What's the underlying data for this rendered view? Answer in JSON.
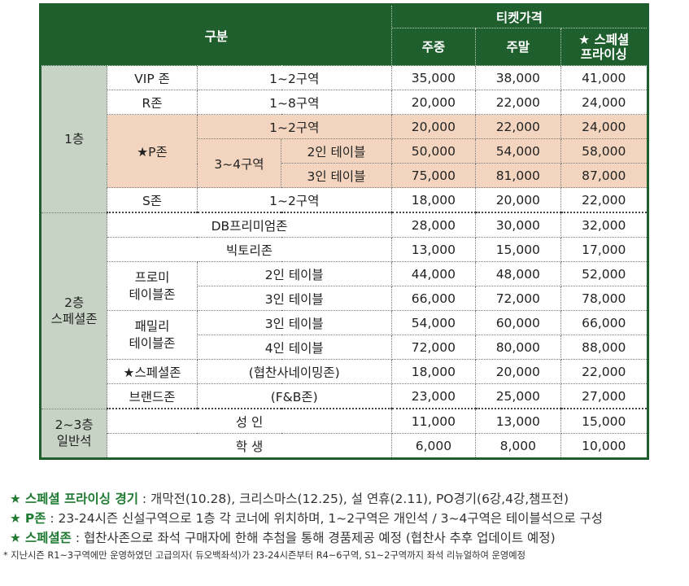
{
  "header": {
    "category": "구분",
    "ticket_price": "티켓가격",
    "weekday": "주중",
    "weekend": "주말",
    "special_line1": "★ 스페셜",
    "special_line2": "프라이싱"
  },
  "floors": {
    "f1": "1층",
    "f2_line1": "2층",
    "f2_line2": "스페셜존",
    "f23_line1": "2~3층",
    "f23_line2": "일반석"
  },
  "rows": {
    "vip": {
      "zone": "VIP 존",
      "section": "1~2구역",
      "weekday": "35,000",
      "weekend": "38,000",
      "special": "41,000"
    },
    "r": {
      "zone": "R존",
      "section": "1~8구역",
      "weekday": "20,000",
      "weekend": "22,000",
      "special": "24,000"
    },
    "p12": {
      "zone": "★P존",
      "section": "1~2구역",
      "weekday": "20,000",
      "weekend": "22,000",
      "special": "24,000"
    },
    "p34_2": {
      "section": "3~4구역",
      "table": "2인 테이블",
      "weekday": "50,000",
      "weekend": "54,000",
      "special": "58,000"
    },
    "p34_3": {
      "table": "3인 테이블",
      "weekday": "75,000",
      "weekend": "81,000",
      "special": "87,000"
    },
    "s": {
      "zone": "S존",
      "section": "1~2구역",
      "weekday": "18,000",
      "weekend": "20,000",
      "special": "22,000"
    },
    "db": {
      "zone": "DB프리미엄존",
      "weekday": "28,000",
      "weekend": "30,000",
      "special": "32,000"
    },
    "victory": {
      "zone": "빅토리존",
      "weekday": "13,000",
      "weekend": "15,000",
      "special": "17,000"
    },
    "promi2": {
      "zone_line1": "프로미",
      "zone_line2": "테이블존",
      "table": "2인 테이블",
      "weekday": "44,000",
      "weekend": "48,000",
      "special": "52,000"
    },
    "promi3": {
      "table": "3인 테이블",
      "weekday": "66,000",
      "weekend": "72,000",
      "special": "78,000"
    },
    "family3": {
      "zone_line1": "패밀리",
      "zone_line2": "테이블존",
      "table": "3인 테이블",
      "weekday": "54,000",
      "weekend": "60,000",
      "special": "66,000"
    },
    "family4": {
      "table": "4인 테이블",
      "weekday": "72,000",
      "weekend": "80,000",
      "special": "88,000"
    },
    "special": {
      "zone": "★스페셜존",
      "note": "(협찬사네이밍존)",
      "weekday": "18,000",
      "weekend": "20,000",
      "special": "22,000"
    },
    "brand": {
      "zone": "브랜드존",
      "note": "(F&B존)",
      "weekday": "23,000",
      "weekend": "25,000",
      "special": "27,000"
    },
    "adult": {
      "label": "성 인",
      "weekday": "11,000",
      "weekend": "13,000",
      "special": "15,000"
    },
    "student": {
      "label": "학 생",
      "weekday": "6,000",
      "weekend": "8,000",
      "special": "10,000"
    }
  },
  "notes": {
    "n1_star": "★",
    "n1_key": "스페셜 프라이싱 경기",
    "n1_text": " : 개막전(10.28), 크리스마스(12.25), 설 연휴(2.11), PO경기(6강,4강,챔프전)",
    "n2_star": "★",
    "n2_key": "P존",
    "n2_text": " : 23-24시즌 신설구역으로 1층 각 코너에 위치하며, 1~2구역은 개인석 / 3~4구역은 테이블석으로 구성",
    "n3_star": "★",
    "n3_key": "스페셜존",
    "n3_text": " : 협찬사존으로 좌석 구매자에 한해 추첨을 통해 경품제공 예정 (협찬사 추후 업데이트 예정)",
    "n4_text": "* 지난시즌 R1~3구역에만 운영하였던 고급의자( 듀오백좌석)가 23-24시즌부터 R4~6구역, S1~2구역까지 좌석 리뉴얼하여 운영예정"
  }
}
